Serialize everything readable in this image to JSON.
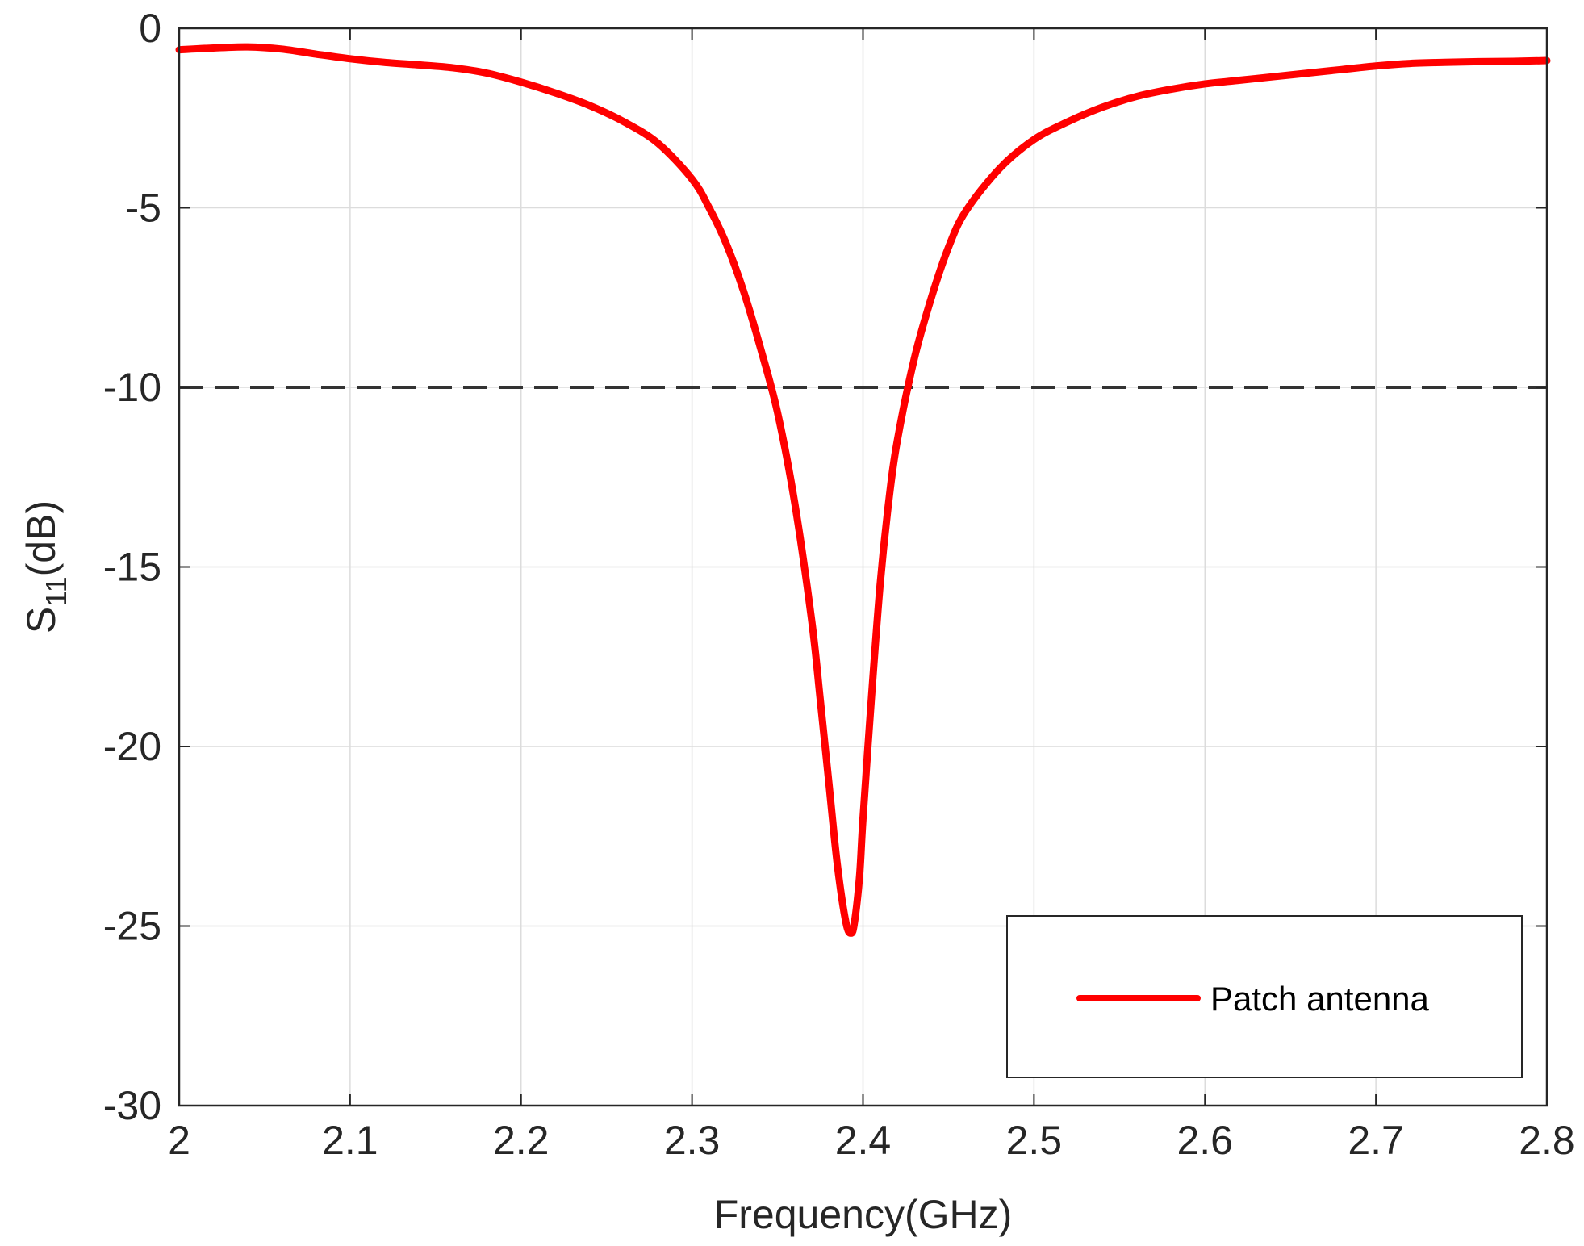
{
  "chart_data": {
    "type": "line",
    "xlabel": "Frequency(GHz)",
    "ylabel": {
      "base": "S",
      "subscript": "11",
      "suffix": "(dB)"
    },
    "xlim": [
      2,
      2.8
    ],
    "ylim": [
      -30,
      0
    ],
    "xticks": [
      2,
      2.1,
      2.2,
      2.3,
      2.4,
      2.5,
      2.6,
      2.7,
      2.8
    ],
    "xtick_labels": [
      "2",
      "2.1",
      "2.2",
      "2.3",
      "2.4",
      "2.5",
      "2.6",
      "2.7",
      "2.8"
    ],
    "yticks": [
      0,
      -5,
      -10,
      -15,
      -20,
      -25,
      -30
    ],
    "ytick_labels": [
      "0",
      "-5",
      "-10",
      "-15",
      "-20",
      "-25",
      "-30"
    ],
    "grid": true,
    "legend_position": "bottom-right",
    "reference_line": {
      "y": -10,
      "style": "dashed",
      "color": "#333333"
    },
    "series": [
      {
        "name": "Patch antenna",
        "color": "#ff0000",
        "x": [
          2.0,
          2.02,
          2.04,
          2.06,
          2.08,
          2.1,
          2.12,
          2.14,
          2.16,
          2.18,
          2.2,
          2.22,
          2.24,
          2.26,
          2.28,
          2.3,
          2.31,
          2.32,
          2.33,
          2.34,
          2.35,
          2.36,
          2.37,
          2.375,
          2.38,
          2.385,
          2.39,
          2.393,
          2.395,
          2.398,
          2.4,
          2.405,
          2.41,
          2.415,
          2.42,
          2.43,
          2.44,
          2.45,
          2.46,
          2.48,
          2.5,
          2.52,
          2.54,
          2.56,
          2.58,
          2.6,
          2.62,
          2.64,
          2.66,
          2.68,
          2.7,
          2.72,
          2.74,
          2.76,
          2.78,
          2.8
        ],
        "y": [
          -0.6,
          -0.55,
          -0.52,
          -0.58,
          -0.72,
          -0.85,
          -0.95,
          -1.02,
          -1.1,
          -1.25,
          -1.5,
          -1.8,
          -2.15,
          -2.6,
          -3.2,
          -4.2,
          -5.0,
          -6.0,
          -7.3,
          -8.9,
          -10.7,
          -13.2,
          -16.5,
          -18.7,
          -21.0,
          -23.3,
          -24.9,
          -25.2,
          -24.9,
          -23.6,
          -22.0,
          -18.6,
          -15.5,
          -13.2,
          -11.5,
          -9.2,
          -7.5,
          -6.1,
          -5.1,
          -3.9,
          -3.1,
          -2.6,
          -2.2,
          -1.9,
          -1.7,
          -1.55,
          -1.45,
          -1.35,
          -1.25,
          -1.15,
          -1.05,
          -0.98,
          -0.95,
          -0.93,
          -0.92,
          -0.9
        ]
      }
    ]
  }
}
